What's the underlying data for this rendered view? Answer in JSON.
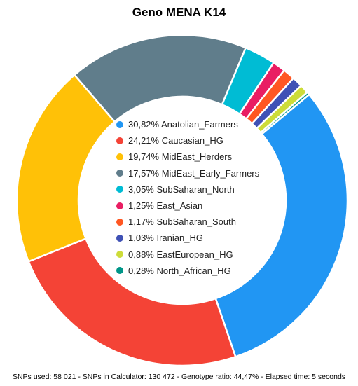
{
  "chart_data": {
    "type": "pie",
    "title": "Geno MENA K14",
    "categories": [
      "Anatolian_Farmers",
      "Caucasian_HG",
      "MidEast_Herders",
      "MidEast_Early_Farmers",
      "SubSaharan_North",
      "East_Asian",
      "SubSaharan_South",
      "Iranian_HG",
      "EastEuropean_HG",
      "North_African_HG"
    ],
    "values": [
      30.82,
      24.21,
      19.74,
      17.57,
      3.05,
      1.25,
      1.17,
      1.03,
      0.88,
      0.28
    ],
    "labels": [
      "30,82% Anatolian_Farmers",
      "24,21% Caucasian_HG",
      "19,74% MidEast_Herders",
      "17,57% MidEast_Early_Farmers",
      "3,05% SubSaharan_North",
      "1,25% East_Asian",
      "1,17% SubSaharan_South",
      "1,03% Iranian_HG",
      "0,88% EastEuropean_HG",
      "0,28% North_African_HG"
    ],
    "colors": [
      "#2196f3",
      "#f44336",
      "#ffc107",
      "#607d8b",
      "#00bcd4",
      "#e91e63",
      "#ff5722",
      "#3f51b5",
      "#cddc39",
      "#009688"
    ],
    "legend_position": "center",
    "style": "donut"
  },
  "footer": "SNPs used: 58 021 - SNPs in Calculator: 130 472 - Genotype ratio: 44,47% - Elapsed time: 5 seconds"
}
